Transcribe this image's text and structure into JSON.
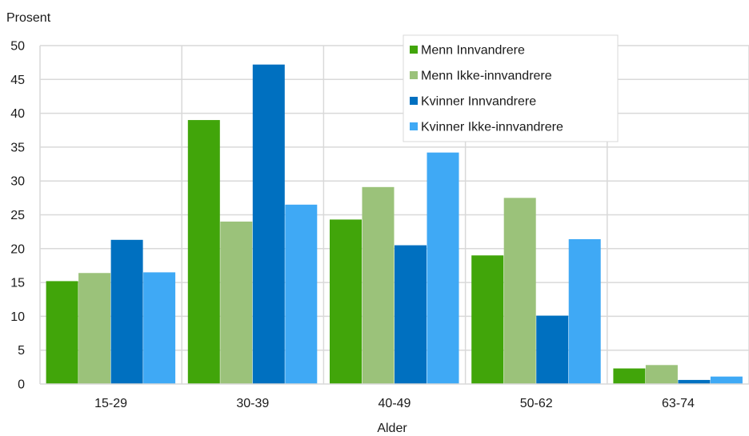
{
  "chart_data": {
    "type": "bar",
    "ylabel": "Prosent",
    "xlabel": "Alder",
    "ylim": [
      0,
      50
    ],
    "yticks": [
      0,
      5,
      10,
      15,
      20,
      25,
      30,
      35,
      40,
      45,
      50
    ],
    "grid": true,
    "legend_position": "top-right",
    "categories": [
      "15-29",
      "30-39",
      "40-49",
      "50-62",
      "63-74"
    ],
    "series": [
      {
        "name": "Menn Innvandrere",
        "color": "#41a50a",
        "values": [
          15.2,
          39.0,
          24.3,
          19.0,
          2.3
        ]
      },
      {
        "name": "Menn Ikke-innvandrere",
        "color": "#9bc27a",
        "values": [
          16.4,
          24.0,
          29.1,
          27.5,
          2.8
        ]
      },
      {
        "name": "Kvinner Innvandrere",
        "color": "#0070c0",
        "values": [
          21.3,
          47.2,
          20.5,
          10.1,
          0.6
        ]
      },
      {
        "name": "Kvinner Ikke-innvandrere",
        "color": "#3fa9f5",
        "values": [
          16.5,
          26.5,
          34.2,
          21.4,
          1.1
        ]
      }
    ]
  }
}
